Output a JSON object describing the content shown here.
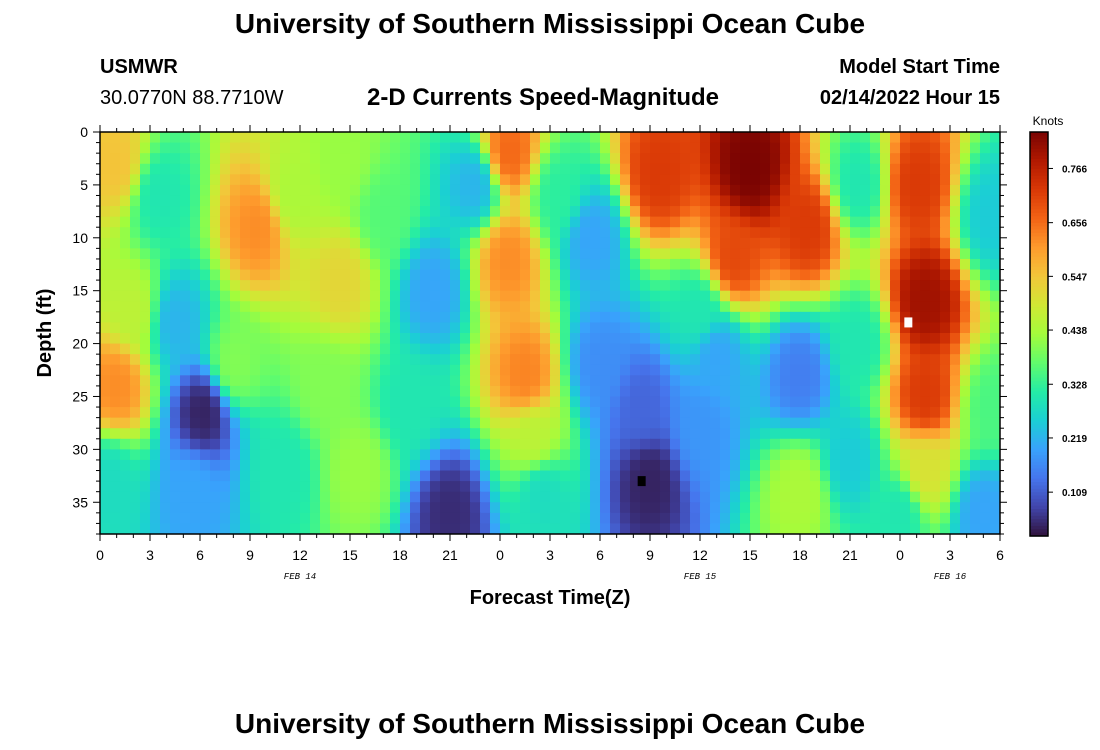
{
  "header": {
    "title": "University of Southern Mississippi Ocean Cube",
    "station": "USMWR",
    "coordinates": "30.0770N  88.7710W",
    "subtitle": "2-D Currents Speed-Magnitude",
    "model_start_label": "Model Start Time",
    "model_start_value": "02/14/2022 Hour 15"
  },
  "footer": {
    "title": "University of Southern Mississippi Ocean Cube"
  },
  "chart_data": {
    "type": "heatmap",
    "title": "2-D Currents Speed-Magnitude",
    "xlabel": "Forecast Time(Z)",
    "ylabel": "Depth (ft)",
    "x_unit": "hours",
    "x_range": [
      0,
      54
    ],
    "y_range": [
      0,
      38
    ],
    "y_inverted": true,
    "x_ticks": [
      {
        "hour": 0,
        "label": "0"
      },
      {
        "hour": 3,
        "label": "3"
      },
      {
        "hour": 6,
        "label": "6"
      },
      {
        "hour": 9,
        "label": "9"
      },
      {
        "hour": 12,
        "label": "12"
      },
      {
        "hour": 15,
        "label": "15"
      },
      {
        "hour": 18,
        "label": "18"
      },
      {
        "hour": 21,
        "label": "21"
      },
      {
        "hour": 24,
        "label": "0"
      },
      {
        "hour": 27,
        "label": "3"
      },
      {
        "hour": 30,
        "label": "6"
      },
      {
        "hour": 33,
        "label": "9"
      },
      {
        "hour": 36,
        "label": "12"
      },
      {
        "hour": 39,
        "label": "15"
      },
      {
        "hour": 42,
        "label": "18"
      },
      {
        "hour": 45,
        "label": "21"
      },
      {
        "hour": 48,
        "label": "0"
      },
      {
        "hour": 51,
        "label": "3"
      },
      {
        "hour": 54,
        "label": "6"
      }
    ],
    "day_labels": [
      {
        "hour": 12,
        "label": "FEB 14"
      },
      {
        "hour": 36,
        "label": "FEB 15"
      },
      {
        "hour": 51,
        "label": "FEB 16"
      }
    ],
    "y_ticks": [
      0,
      5,
      10,
      15,
      20,
      25,
      30,
      35
    ],
    "colorbar": {
      "unit": "Knots",
      "min": 0.02,
      "max": 0.84,
      "ticks": [
        0.109,
        0.219,
        0.328,
        0.438,
        0.547,
        0.656,
        0.766
      ],
      "colors": [
        "#30123b",
        "#4145ab",
        "#4675ed",
        "#39a2fc",
        "#1bcfd4",
        "#24eca6",
        "#61fc6c",
        "#a4fc3b",
        "#d1e834",
        "#f3c63a",
        "#fe9b2d",
        "#f36315",
        "#d93806",
        "#b11901",
        "#7a0402"
      ]
    },
    "grid": false,
    "features": [
      {
        "x": 1,
        "y": 24,
        "value": 0.62
      },
      {
        "x": 1,
        "y": 3,
        "value": 0.55
      },
      {
        "x": 2,
        "y": 17,
        "value": 0.46
      },
      {
        "x": 0.5,
        "y": 33,
        "value": 0.28
      },
      {
        "x": 3.5,
        "y": 6,
        "value": 0.3
      },
      {
        "x": 4.5,
        "y": 18,
        "value": 0.22
      },
      {
        "x": 6.2,
        "y": 26.5,
        "value": 0.04
      },
      {
        "x": 5.5,
        "y": 34,
        "value": 0.2
      },
      {
        "x": 9.5,
        "y": 9,
        "value": 0.62
      },
      {
        "x": 8,
        "y": 22,
        "value": 0.4
      },
      {
        "x": 11.5,
        "y": 6,
        "value": 0.44
      },
      {
        "x": 11,
        "y": 32,
        "value": 0.3
      },
      {
        "x": 14.5,
        "y": 14,
        "value": 0.52
      },
      {
        "x": 14.5,
        "y": 3,
        "value": 0.42
      },
      {
        "x": 13.5,
        "y": 24,
        "value": 0.4
      },
      {
        "x": 15.5,
        "y": 32,
        "value": 0.42
      },
      {
        "x": 17,
        "y": 8,
        "value": 0.36
      },
      {
        "x": 18.5,
        "y": 26,
        "value": 0.3
      },
      {
        "x": 20,
        "y": 15,
        "value": 0.2
      },
      {
        "x": 21,
        "y": 36,
        "value": 0.05
      },
      {
        "x": 22.5,
        "y": 5,
        "value": 0.22
      },
      {
        "x": 24.5,
        "y": 2,
        "value": 0.66
      },
      {
        "x": 24.5,
        "y": 12,
        "value": 0.62
      },
      {
        "x": 25.5,
        "y": 23,
        "value": 0.63
      },
      {
        "x": 26,
        "y": 29,
        "value": 0.46
      },
      {
        "x": 26.5,
        "y": 34,
        "value": 0.28
      },
      {
        "x": 27.5,
        "y": 6,
        "value": 0.32
      },
      {
        "x": 29.5,
        "y": 10,
        "value": 0.2
      },
      {
        "x": 30,
        "y": 22,
        "value": 0.17
      },
      {
        "x": 33,
        "y": 33,
        "value": 0.04
      },
      {
        "x": 32.5,
        "y": 26,
        "value": 0.12
      },
      {
        "x": 33.5,
        "y": 4,
        "value": 0.72
      },
      {
        "x": 39,
        "y": 3.5,
        "value": 0.84
      },
      {
        "x": 38,
        "y": 12,
        "value": 0.7
      },
      {
        "x": 42.5,
        "y": 9,
        "value": 0.72
      },
      {
        "x": 36,
        "y": 17,
        "value": 0.3
      },
      {
        "x": 37,
        "y": 21,
        "value": 0.2
      },
      {
        "x": 42,
        "y": 23,
        "value": 0.15
      },
      {
        "x": 36,
        "y": 28,
        "value": 0.18
      },
      {
        "x": 42,
        "y": 34,
        "value": 0.44
      },
      {
        "x": 45,
        "y": 31,
        "value": 0.25
      },
      {
        "x": 45.5,
        "y": 5,
        "value": 0.3
      },
      {
        "x": 45.5,
        "y": 20,
        "value": 0.3
      },
      {
        "x": 49,
        "y": 5,
        "value": 0.72
      },
      {
        "x": 49.5,
        "y": 16,
        "value": 0.8
      },
      {
        "x": 49.5,
        "y": 25,
        "value": 0.72
      },
      {
        "x": 49.5,
        "y": 32,
        "value": 0.5
      },
      {
        "x": 48,
        "y": 36,
        "value": 0.3
      },
      {
        "x": 53.5,
        "y": 8,
        "value": 0.25
      },
      {
        "x": 53.5,
        "y": 26,
        "value": 0.35
      },
      {
        "x": 53,
        "y": 36,
        "value": 0.2
      }
    ],
    "markers": [
      {
        "type": "maximum",
        "x": 48.5,
        "y": 18,
        "color": "#ffffff"
      },
      {
        "type": "minimum",
        "x": 32.5,
        "y": 33,
        "color": "#000000"
      }
    ]
  }
}
